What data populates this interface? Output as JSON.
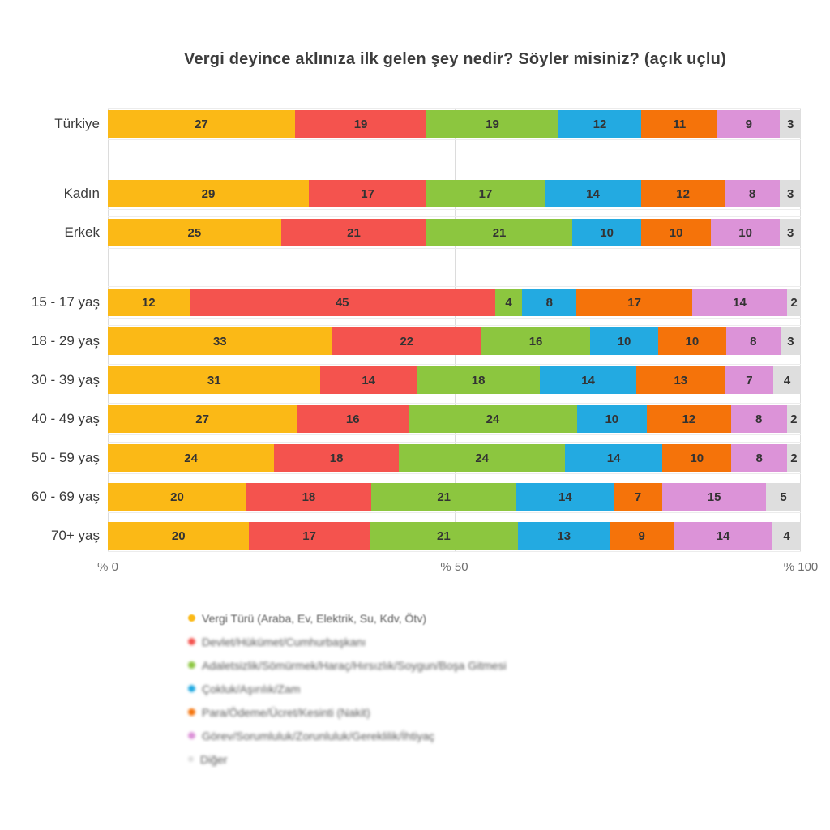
{
  "title": "Vergi deyince aklınıza ilk gelen şey nedir? Söyler misiniz? (açık uçlu)",
  "chart_data": {
    "type": "bar",
    "stacked": true,
    "orientation": "horizontal",
    "title": "Vergi deyince aklınıza ilk gelen şey nedir? Söyler misiniz? (açık uçlu)",
    "xlim": [
      0,
      100
    ],
    "x_ticks": [
      "% 0",
      "% 50",
      "% 100"
    ],
    "grid": "vertical",
    "legend_position": "bottom-left",
    "series": [
      {
        "name": "Vergi Türü (Araba, Ev, Elektrik, Su, Kdv, Ötv)",
        "color": "#FBB916"
      },
      {
        "name": "Devlet/Hükümet/Cumhurbaşkanı",
        "color": "#F4534E"
      },
      {
        "name": "Adaletsizlik/Sömürmek/Haraç/Hırsızlık/Soygun/Boşa Gitmesi",
        "color": "#8CC63F"
      },
      {
        "name": "Çokluk/Aşırılık/Zam",
        "color": "#23AAE1"
      },
      {
        "name": "Para/Ödeme/Ücret/Kesinti (Nakit)",
        "color": "#F5730A"
      },
      {
        "name": "Görev/Sorumluluk/Zorunluluk/Gereklilik/İhtiyaç",
        "color": "#DC93D8"
      },
      {
        "name": "Diğer",
        "color": "#DEDEDE"
      }
    ],
    "groups": [
      {
        "rows": [
          {
            "label": "Türkiye",
            "values": [
              27,
              19,
              19,
              12,
              11,
              9,
              3
            ]
          }
        ]
      },
      {
        "rows": [
          {
            "label": "Kadın",
            "values": [
              29,
              17,
              17,
              14,
              12,
              8,
              3
            ]
          },
          {
            "label": "Erkek",
            "values": [
              25,
              21,
              21,
              10,
              10,
              10,
              3
            ]
          }
        ]
      },
      {
        "rows": [
          {
            "label": "15 - 17 yaş",
            "values": [
              12,
              45,
              4,
              8,
              17,
              14,
              2
            ]
          },
          {
            "label": "18 - 29 yaş",
            "values": [
              33,
              22,
              16,
              10,
              10,
              8,
              3
            ]
          },
          {
            "label": "30 - 39 yaş",
            "values": [
              31,
              14,
              18,
              14,
              13,
              7,
              4
            ]
          },
          {
            "label": "40 - 49 yaş",
            "values": [
              27,
              16,
              24,
              10,
              12,
              8,
              2
            ]
          },
          {
            "label": "50 - 59 yaş",
            "values": [
              24,
              18,
              24,
              14,
              10,
              8,
              2
            ]
          },
          {
            "label": "60 - 69 yaş",
            "values": [
              20,
              18,
              21,
              14,
              7,
              15,
              5
            ]
          },
          {
            "label": "70+ yaş",
            "values": [
              20,
              17,
              21,
              13,
              9,
              14,
              4
            ]
          }
        ]
      }
    ]
  }
}
